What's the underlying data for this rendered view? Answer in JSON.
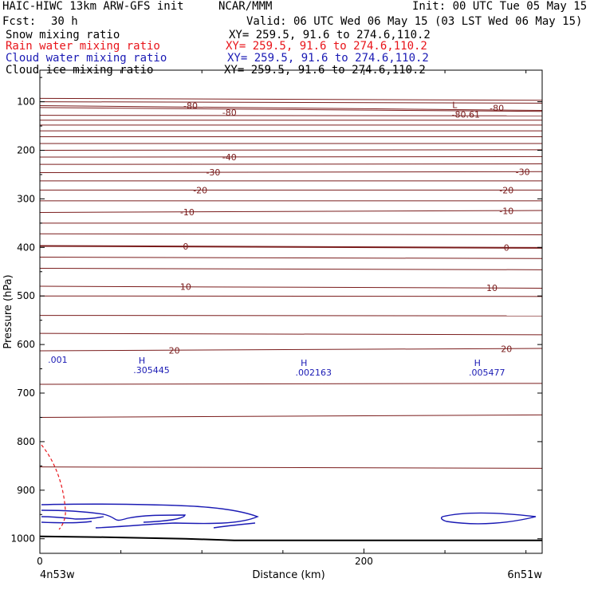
{
  "header": {
    "model": "HAIC-HIWC 13km ARW-GFS init",
    "org": "NCAR/MMM",
    "init": "Init: 00 UTC Tue 05 May 15",
    "fcst_label": "Fcst:",
    "fcst_value": "30 h",
    "valid": "Valid: 06 UTC Wed 06 May 15 (03 LST Wed 06 May 15)"
  },
  "fields": [
    {
      "name": "Snow mixing ratio",
      "xy": "XY= 259.5, 91.6 to 274.6,110.2",
      "color": "#000000"
    },
    {
      "name": "Rain water mixing ratio",
      "xy": "XY= 259.5, 91.6 to 274.6,110.2",
      "color": "#e8141a"
    },
    {
      "name": "Cloud water mixing ratio",
      "xy": "XY= 259.5, 91.6 to 274.6,110.2",
      "color": "#1a1ab4"
    },
    {
      "name": "Cloud ice mixing ratio",
      "xy": "XY= 259.5, 91.6 to 274.6,110.2",
      "color": "#000000"
    }
  ],
  "chart_data": {
    "type": "line",
    "xlabel": "Distance (km)",
    "ylabel": "Pressure (hPa)",
    "xlim": [
      0,
      310
    ],
    "ylim": [
      1030,
      35
    ],
    "x_ticks": [
      0,
      200
    ],
    "y_ticks": [
      100,
      200,
      300,
      400,
      500,
      600,
      700,
      800,
      900,
      1000
    ],
    "x_end_labels": {
      "left": "4n53w",
      "right": "6n51w"
    },
    "temperature_color": "#7a1c1c",
    "temperature_isotherms": [
      {
        "label": "-80",
        "p": [
          108,
          118
        ]
      },
      {
        "label": "-40",
        "p": [
          214,
          213
        ]
      },
      {
        "label": "-30",
        "p": [
          246,
          244
        ]
      },
      {
        "label": "-20",
        "p": [
          282,
          282
        ]
      },
      {
        "label": "-10",
        "p": [
          328,
          324
        ]
      },
      {
        "label": "0",
        "p": [
          397,
          401
        ]
      },
      {
        "label": "10",
        "p": [
          480,
          484
        ]
      },
      {
        "label": "20",
        "p": [
          613,
          608
        ]
      }
    ],
    "temperature_labels": [
      {
        "text": "-80",
        "x": 93,
        "p": 108
      },
      {
        "text": "-80",
        "x": 117,
        "p": 122
      },
      {
        "text": "-80",
        "x": 282,
        "p": 113
      },
      {
        "text": "-40",
        "x": 117,
        "p": 214
      },
      {
        "text": "-30",
        "x": 107,
        "p": 245
      },
      {
        "text": "-30",
        "x": 298,
        "p": 244
      },
      {
        "text": "-20",
        "x": 99,
        "p": 282
      },
      {
        "text": "-20",
        "x": 288,
        "p": 282
      },
      {
        "text": "-10",
        "x": 91,
        "p": 327
      },
      {
        "text": "-10",
        "x": 288,
        "p": 325
      },
      {
        "text": "0",
        "x": 90,
        "p": 398
      },
      {
        "text": "0",
        "x": 288,
        "p": 400
      },
      {
        "text": "10",
        "x": 90,
        "p": 481
      },
      {
        "text": "10",
        "x": 279,
        "p": 483
      },
      {
        "text": "20",
        "x": 83,
        "p": 612
      },
      {
        "text": "20",
        "x": 288,
        "p": 609
      }
    ],
    "min_label": {
      "letter": "L",
      "value": "-80.61",
      "x": 256,
      "p": 113
    },
    "cloud_water_maxima": [
      {
        "letter": "H",
        "value": ".305445",
        "x": 63,
        "p": 639
      },
      {
        "letter": "H",
        "value": ".002163",
        "x": 163,
        "p": 644
      },
      {
        "letter": "H",
        "value": ".005477",
        "x": 270,
        "p": 644
      }
    ],
    "cloud_water_contour_label": {
      "text": ".001",
      "x": 11,
      "p": 631
    },
    "terrain_p": 1000
  }
}
